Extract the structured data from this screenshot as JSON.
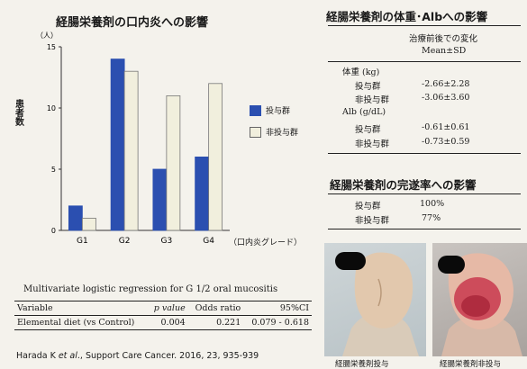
{
  "chart_data": {
    "type": "bar",
    "title": "経腸栄養剤の口内炎への影響",
    "unit_label": "（人）",
    "ylabel": "患者数",
    "xlabel": "（口内炎グレード）",
    "categories": [
      "G1",
      "G2",
      "G3",
      "G4"
    ],
    "series": [
      {
        "name": "投与群",
        "values": [
          2,
          14,
          5,
          6
        ],
        "color": "#2b4fb0"
      },
      {
        "name": "非投与群",
        "values": [
          1,
          13,
          11,
          12
        ],
        "color": "#f1efdd"
      }
    ],
    "ylim": [
      0,
      15
    ],
    "yticks": [
      "0",
      "5",
      "10",
      "15"
    ],
    "grid": false,
    "legend": "right"
  },
  "regression": {
    "title": "Multivariate logistic regression for G 1/2 oral mucositis",
    "headers": [
      "Variable",
      "p value",
      "Odds ratio",
      "95%CI"
    ],
    "row": [
      "Elemental diet (vs Control)",
      "0.004",
      "0.221",
      "0.079 - 0.618"
    ]
  },
  "citation": {
    "authors": "Harada K ",
    "etal": "et al",
    "rest": "., Support Care Cancer. 2016, 23, 935-939"
  },
  "weight_alb": {
    "title": "経腸栄養剤の体重･Albへの影響",
    "header_line1": "治療前後での変化",
    "header_line2": "Mean±SD",
    "rows": [
      {
        "label": "体重 (kg)",
        "value": ""
      },
      {
        "label": "投与群",
        "value": "-2.66±2.28"
      },
      {
        "label": "非投与群",
        "value": "-3.06±3.60"
      },
      {
        "label": "Alb (g/dL)",
        "value": ""
      },
      {
        "label": "投与群",
        "value": "-0.61±0.61"
      },
      {
        "label": "非投与群",
        "value": "-0.73±0.59"
      }
    ]
  },
  "completion": {
    "title": "経腸栄養剤の完遂率への影響",
    "rows": [
      {
        "label": "投与群",
        "value": "100%"
      },
      {
        "label": "非投与群",
        "value": "77%"
      }
    ]
  },
  "photos": {
    "caption1": "経腸栄養剤投与",
    "caption2": "経腸栄養剤非投与"
  }
}
